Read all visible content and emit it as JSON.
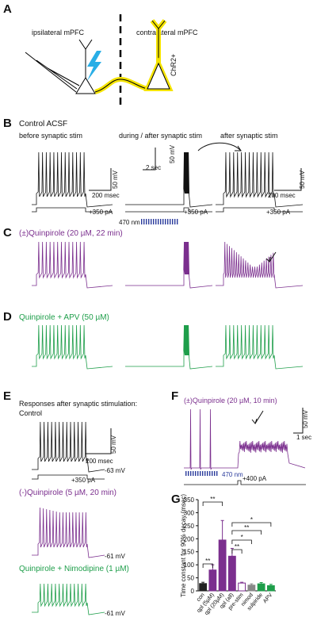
{
  "panels": {
    "A": {
      "label": "A",
      "ipsilateral": "ipsilateral mPFC",
      "contralateral": "contralateral mPFC",
      "virus": "ChR2+"
    },
    "B": {
      "label": "B",
      "title": "Control ACSF",
      "before": "before synaptic stim",
      "during": "during / after synaptic stim",
      "after": "after synaptic stim",
      "mv1": "50 mV",
      "ms1": "200 msec",
      "sec": "2 sec",
      "mv2": "50 mV",
      "mv3": "50 mV",
      "ms3": "200 msec",
      "pa1": "+350 pA",
      "pa2": "+350 pA",
      "pa3": "+350 pA",
      "light": "470 nm"
    },
    "C": {
      "label": "C",
      "title": "(±)Quinpirole (20 µM, 22 min)"
    },
    "D": {
      "label": "D",
      "title": "Quinpirole + APV (50 µM)"
    },
    "E": {
      "label": "E",
      "title": "Responses after synaptic stimulation:",
      "control": "Control",
      "mv": "50 mV",
      "ms": "200 msec",
      "rest1": "-63 mV",
      "pa": "+350 pA",
      "quin": "(-)Quinpirole (5 µM, 20 min)",
      "rest2": "-61 mV",
      "nimo": "Quinpirole + Nimodipine (1 µM)",
      "rest3": "-61 mV"
    },
    "F": {
      "label": "F",
      "title": "(±)Quinpirole (20 µM, 10 min)",
      "mv": "50 mV",
      "sec": "1 sec",
      "light": "470 nm",
      "pa": "+400 pA"
    }
  },
  "chart_data": {
    "type": "bar",
    "panel_label": "G",
    "ylabel": "Time constant for 90% decay (msec)",
    "categories": [
      "con",
      "qpl (5µM)",
      "qpl (20µM)",
      "qpl (all)",
      "pre-stim",
      "nimod",
      "sulpiride",
      "APV"
    ],
    "values": [
      28,
      80,
      195,
      133,
      30,
      22,
      27,
      20
    ],
    "errors": [
      5,
      20,
      75,
      30,
      3,
      5,
      5,
      5
    ],
    "colors": [
      "#222222",
      "#7b2f8e",
      "#7b2f8e",
      "#7b2f8e",
      "#ffffff",
      "#888888",
      "#1e9e4a",
      "#1e9e4a"
    ],
    "edge_colors": [
      "#222222",
      "#7b2f8e",
      "#7b2f8e",
      "#7b2f8e",
      "#7b2f8e",
      "#888888",
      "#1e9e4a",
      "#1e9e4a"
    ],
    "ylim": [
      0,
      350
    ],
    "yticks": [
      0,
      50,
      100,
      150,
      200,
      250,
      300,
      350
    ],
    "annotations": [
      "**",
      "*",
      "**",
      "*",
      "**",
      "**"
    ]
  }
}
